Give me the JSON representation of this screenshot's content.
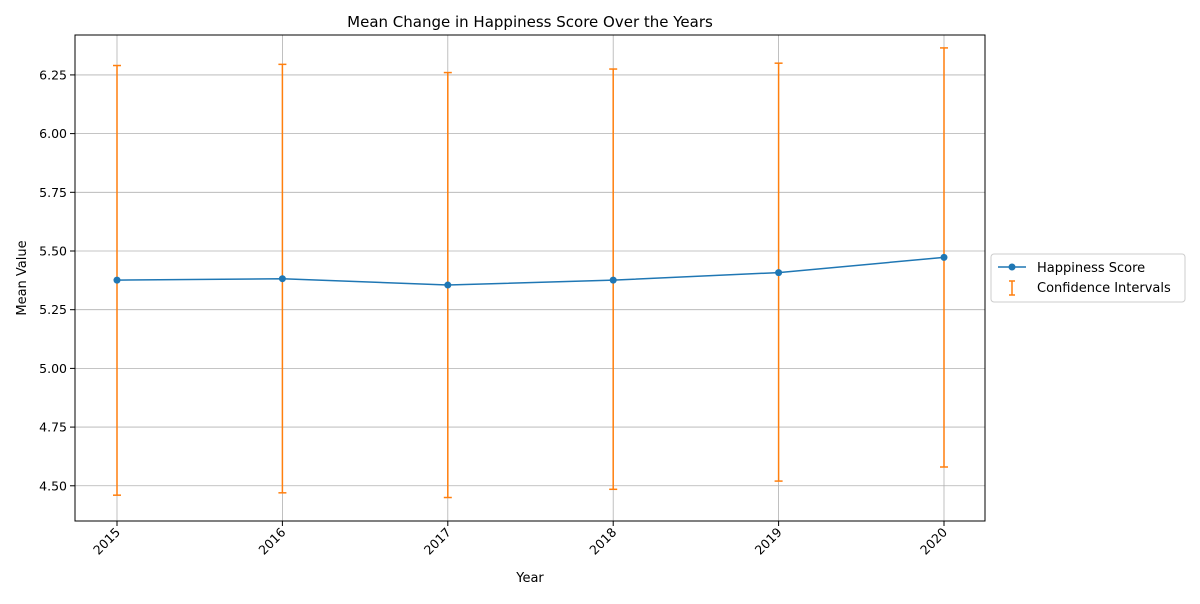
{
  "chart_data": {
    "type": "line",
    "title": "Mean Change in Happiness Score Over the Years",
    "xlabel": "Year",
    "ylabel": "Mean Value",
    "x": [
      2015,
      2016,
      2017,
      2018,
      2019,
      2020
    ],
    "ylim": [
      4.35,
      6.42
    ],
    "yticks": [
      "4.50",
      "4.75",
      "5.00",
      "5.25",
      "5.50",
      "5.75",
      "6.00",
      "6.25"
    ],
    "grid": true,
    "legend_position": "center-right-outside",
    "series": [
      {
        "name": "Happiness Score",
        "values": [
          5.376,
          5.382,
          5.355,
          5.376,
          5.408,
          5.473
        ],
        "color": "#1f77b4",
        "marker": "circle"
      }
    ],
    "error_bars": {
      "name": "Confidence Intervals",
      "color": "#ff7f0e",
      "lower": [
        4.46,
        4.47,
        4.45,
        4.485,
        4.52,
        4.58
      ],
      "upper": [
        6.29,
        6.295,
        6.26,
        6.275,
        6.3,
        6.365
      ]
    }
  }
}
